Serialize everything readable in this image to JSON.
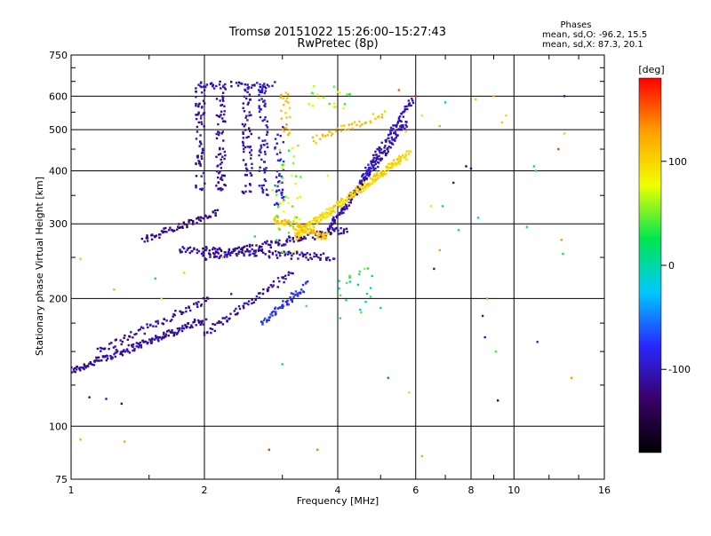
{
  "chart_data": {
    "type": "scatter",
    "title": "Tromsø 20151022 15:26:00–15:27:43",
    "subtitle": "RwPretec (8p)",
    "xlabel": "Frequency [MHz]",
    "ylabel": "Stationary phase Virtual Height [km]",
    "x_scale": "log",
    "y_scale": "log",
    "xlim": [
      1,
      16
    ],
    "ylim": [
      75,
      750
    ],
    "x_ticks": [
      1,
      2,
      4,
      6,
      8,
      10,
      16
    ],
    "x_tick_labels": [
      "1",
      "2",
      "4",
      "6",
      "8",
      "10",
      "16"
    ],
    "y_ticks": [
      75,
      100,
      200,
      300,
      400,
      500,
      600,
      750
    ],
    "y_tick_labels": [
      "75",
      "100",
      "200",
      "300",
      "400",
      "500",
      "600",
      "750"
    ],
    "grid": true,
    "phase_stats": {
      "heading": "Phases",
      "line_o": "mean, sd,O: -96.2, 15.5",
      "line_x": "mean, sd,X:  87.3, 20.1"
    },
    "colorbar": {
      "label": "[deg]",
      "range": [
        -180,
        180
      ],
      "ticks": [
        100,
        0,
        -100
      ],
      "tick_labels": [
        "100",
        "0",
        "-100"
      ],
      "colors": [
        "#000000",
        "#3a0068",
        "#2828ff",
        "#00c8ff",
        "#00e650",
        "#f0ff00",
        "#ffa000",
        "#ff0000"
      ]
    },
    "series": [
      {
        "traces": [
          {
            "f0": 1.0,
            "f1": 2.0,
            "h0": 135,
            "h1": 178,
            "phase": -110,
            "n": 170
          },
          {
            "f0": 1.15,
            "f1": 2.05,
            "h0": 150,
            "h1": 200,
            "phase": -112,
            "n": 70
          },
          {
            "f0": 2.0,
            "f1": 3.15,
            "h0": 165,
            "h1": 230,
            "phase": -108,
            "n": 70
          },
          {
            "f0": 1.45,
            "f1": 2.15,
            "h0": 275,
            "h1": 318,
            "phase": -118,
            "n": 70
          },
          {
            "f0": 1.75,
            "f1": 3.9,
            "h0": 262,
            "h1": 250,
            "phase": -108,
            "n": 130
          },
          {
            "f0": 2.0,
            "f1": 4.2,
            "h0": 250,
            "h1": 292,
            "phase": -110,
            "n": 120
          },
          {
            "f0": 3.8,
            "f1": 5.7,
            "h0": 290,
            "h1": 520,
            "phase": -105,
            "n": 170
          },
          {
            "f0": 4.5,
            "f1": 5.9,
            "h0": 380,
            "h1": 590,
            "phase": -100,
            "n": 80
          },
          {
            "f0": 3.2,
            "f1": 5.8,
            "h0": 280,
            "h1": 440,
            "phase": 98,
            "n": 230
          },
          {
            "f0": 2.85,
            "f1": 3.8,
            "h0": 310,
            "h1": 278,
            "phase": 108,
            "n": 90
          },
          {
            "f0": 3.5,
            "f1": 5.1,
            "h0": 470,
            "h1": 548,
            "phase": 110,
            "n": 40
          },
          {
            "f0": 2.7,
            "f1": 3.4,
            "h0": 175,
            "h1": 215,
            "phase": -75,
            "n": 60
          }
        ],
        "columns": [
          {
            "f": 1.96,
            "h0": 360,
            "h1": 650,
            "phase": -108,
            "n": 70
          },
          {
            "f": 2.18,
            "h0": 360,
            "h1": 640,
            "phase": -110,
            "n": 70
          },
          {
            "f": 2.5,
            "h0": 350,
            "h1": 640,
            "phase": -105,
            "n": 70
          },
          {
            "f": 2.72,
            "h0": 350,
            "h1": 640,
            "phase": -95,
            "n": 70
          },
          {
            "f": 2.95,
            "h0": 330,
            "h1": 510,
            "phase": -88,
            "n": 40
          },
          {
            "f": 3.05,
            "h0": 480,
            "h1": 620,
            "phase": 110,
            "n": 25
          }
        ],
        "clusters": [
          {
            "f0": 2.0,
            "f1": 2.9,
            "h0": 625,
            "h1": 650,
            "phase": -110,
            "n": 40
          },
          {
            "f0": 2.9,
            "f1": 3.3,
            "h0": 250,
            "h1": 480,
            "phase": 60,
            "n": 40
          },
          {
            "f0": 3.4,
            "f1": 4.3,
            "h0": 560,
            "h1": 640,
            "phase": 60,
            "n": 20
          },
          {
            "f0": 4.0,
            "f1": 4.8,
            "h0": 175,
            "h1": 240,
            "phase": 20,
            "n": 20
          }
        ],
        "scatter": [
          [
            1.05,
            93,
            120
          ],
          [
            1.32,
            92,
            125
          ],
          [
            1.1,
            117,
            -115
          ],
          [
            1.2,
            116,
            -110
          ],
          [
            1.3,
            113,
            -120
          ],
          [
            1.05,
            248,
            110
          ],
          [
            1.25,
            210,
            50
          ],
          [
            1.6,
            200,
            90
          ],
          [
            2.6,
            280,
            30
          ],
          [
            3.2,
            258,
            80
          ],
          [
            4.6,
            235,
            60
          ],
          [
            5.0,
            190,
            -10
          ],
          [
            5.2,
            130,
            -50
          ],
          [
            5.8,
            120,
            100
          ],
          [
            6.2,
            85,
            120
          ],
          [
            6.6,
            235,
            -110
          ],
          [
            6.8,
            260,
            130
          ],
          [
            7.5,
            290,
            10
          ],
          [
            7.3,
            375,
            -110
          ],
          [
            7.8,
            410,
            -130
          ],
          [
            8.0,
            405,
            -130
          ],
          [
            8.2,
            590,
            110
          ],
          [
            8.3,
            310,
            -20
          ],
          [
            8.5,
            182,
            -100
          ],
          [
            8.6,
            162,
            -110
          ],
          [
            8.7,
            200,
            40
          ],
          [
            9.0,
            600,
            120
          ],
          [
            9.1,
            150,
            40
          ],
          [
            9.2,
            115,
            -120
          ],
          [
            9.4,
            520,
            110
          ],
          [
            9.6,
            540,
            100
          ],
          [
            10.7,
            295,
            30
          ],
          [
            11.1,
            410,
            20
          ],
          [
            11.2,
            400,
            30
          ],
          [
            11.3,
            158,
            -80
          ],
          [
            12.6,
            450,
            160
          ],
          [
            12.8,
            275,
            130
          ],
          [
            12.9,
            255,
            30
          ],
          [
            13.0,
            600,
            -110
          ],
          [
            13.5,
            130,
            130
          ],
          [
            13.0,
            490,
            60
          ],
          [
            6.2,
            540,
            90
          ],
          [
            6.0,
            600,
            170
          ],
          [
            5.5,
            620,
            150
          ],
          [
            3.8,
            390,
            80
          ],
          [
            3.0,
            385,
            40
          ],
          [
            2.85,
            360,
            90
          ],
          [
            5.7,
            495,
            100
          ],
          [
            6.8,
            510,
            120
          ],
          [
            7.0,
            580,
            -20
          ],
          [
            6.5,
            330,
            90
          ],
          [
            6.9,
            330,
            -20
          ],
          [
            2.2,
            250,
            110
          ],
          [
            1.55,
            223,
            30
          ],
          [
            1.8,
            230,
            60
          ],
          [
            3.6,
            88,
            140
          ],
          [
            2.8,
            88,
            160
          ],
          [
            2.3,
            205,
            -90
          ],
          [
            3.0,
            140,
            10
          ],
          [
            3.4,
            192,
            40
          ]
        ]
      }
    ]
  }
}
